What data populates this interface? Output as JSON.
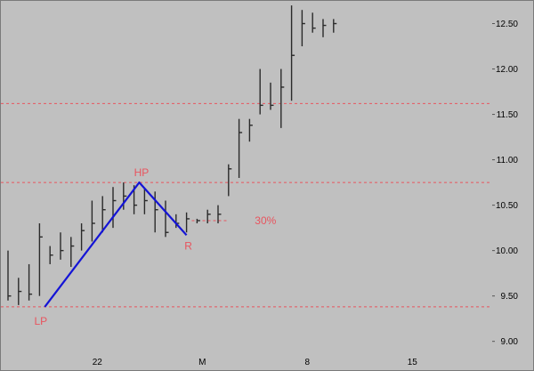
{
  "chart_data": {
    "type": "ohlc",
    "title": "",
    "xlabel": "",
    "ylabel": "",
    "ylim": [
      8.85,
      12.75
    ],
    "y_ticks": [
      "9.00",
      "9.50",
      "10.00",
      "10.50",
      "11.00",
      "11.50",
      "12.00",
      "12.50"
    ],
    "x_ticks": [
      {
        "label": "22",
        "bar": 8.5
      },
      {
        "label": "M",
        "bar": 18.5
      },
      {
        "label": "8",
        "bar": 28.5
      },
      {
        "label": "15",
        "bar": 38.5
      }
    ],
    "grid": false,
    "bars": [
      {
        "high": 10.0,
        "low": 9.45,
        "close": 9.5
      },
      {
        "high": 9.7,
        "low": 9.4,
        "close": 9.55
      },
      {
        "high": 9.85,
        "low": 9.45,
        "close": 9.52
      },
      {
        "high": 10.3,
        "low": 9.5,
        "close": 10.15
      },
      {
        "high": 10.05,
        "low": 9.85,
        "close": 9.95
      },
      {
        "high": 10.2,
        "low": 9.9,
        "close": 10.0
      },
      {
        "high": 10.15,
        "low": 9.82,
        "close": 10.05
      },
      {
        "high": 10.3,
        "low": 10.0,
        "close": 10.22
      },
      {
        "high": 10.55,
        "low": 10.1,
        "close": 10.3
      },
      {
        "high": 10.6,
        "low": 10.2,
        "close": 10.45
      },
      {
        "high": 10.7,
        "low": 10.25,
        "close": 10.55
      },
      {
        "high": 10.75,
        "low": 10.45,
        "close": 10.6
      },
      {
        "high": 10.72,
        "low": 10.4,
        "close": 10.5
      },
      {
        "high": 10.68,
        "low": 10.4,
        "close": 10.55
      },
      {
        "high": 10.65,
        "low": 10.2,
        "close": 10.45
      },
      {
        "high": 10.55,
        "low": 10.15,
        "close": 10.2
      },
      {
        "high": 10.4,
        "low": 10.25,
        "close": 10.3
      },
      {
        "high": 10.42,
        "low": 10.2,
        "close": 10.35
      },
      {
        "high": 10.35,
        "low": 10.3,
        "close": 10.33
      },
      {
        "high": 10.45,
        "low": 10.3,
        "close": 10.4
      },
      {
        "high": 10.5,
        "low": 10.3,
        "close": 10.4
      },
      {
        "high": 10.95,
        "low": 10.6,
        "close": 10.9
      },
      {
        "high": 11.45,
        "low": 10.8,
        "close": 11.3
      },
      {
        "high": 11.45,
        "low": 11.2,
        "close": 11.38
      },
      {
        "high": 12.0,
        "low": 11.5,
        "close": 11.6
      },
      {
        "high": 11.85,
        "low": 11.55,
        "close": 11.6
      },
      {
        "high": 12.0,
        "low": 11.35,
        "close": 11.8
      },
      {
        "high": 12.7,
        "low": 11.65,
        "close": 12.15
      },
      {
        "high": 12.65,
        "low": 12.25,
        "close": 12.5
      },
      {
        "high": 12.62,
        "low": 12.4,
        "close": 12.45
      },
      {
        "high": 12.55,
        "low": 12.35,
        "close": 12.48
      },
      {
        "high": 12.55,
        "low": 12.4,
        "close": 12.5
      }
    ],
    "horizontal_lines": [
      11.62,
      10.75,
      9.38
    ],
    "swing_line": [
      {
        "bar": 3.5,
        "y": 9.38
      },
      {
        "bar": 12.5,
        "y": 10.75
      },
      {
        "bar": 17.0,
        "y": 10.17
      }
    ],
    "retracement_line": {
      "y": 10.33,
      "from_bar": 17.5,
      "to_bar": 21.0
    },
    "annotations": [
      {
        "text": "LP",
        "bar": 2.5,
        "y": 9.22
      },
      {
        "text": "HP",
        "bar": 12.0,
        "y": 10.86
      },
      {
        "text": "R",
        "bar": 16.8,
        "y": 10.05
      },
      {
        "text": "30%",
        "bar": 23.5,
        "y": 10.33
      }
    ],
    "colors": {
      "background": "#c0c0c0",
      "bars": "#2a2a2a",
      "swing_line": "#1414d6",
      "dashed_lines": "#e8545e",
      "annotation_text": "#e8545e"
    }
  }
}
